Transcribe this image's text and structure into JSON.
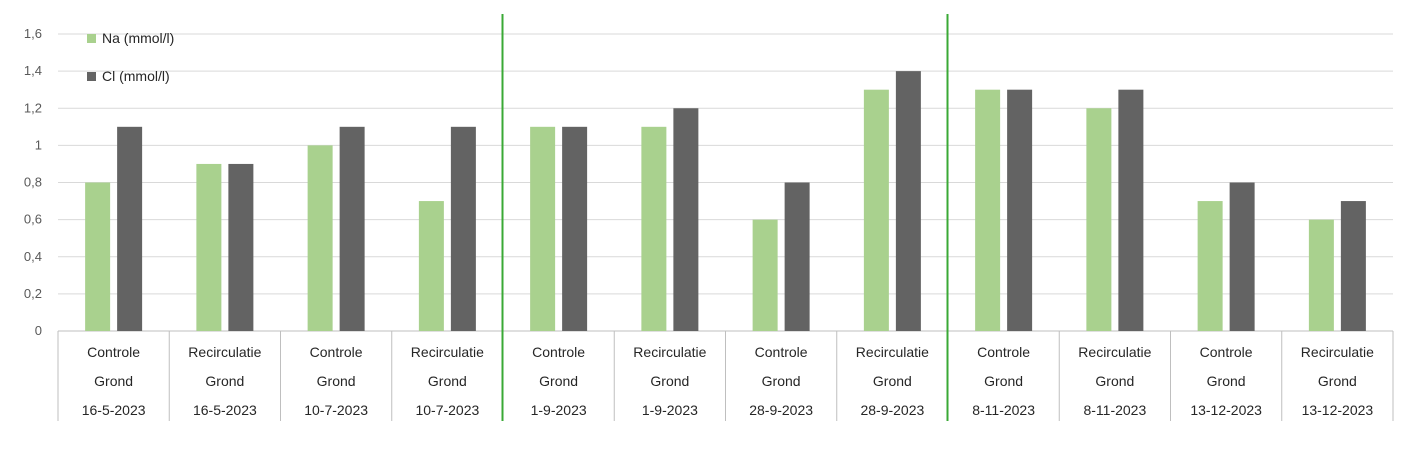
{
  "chart_data": {
    "type": "bar",
    "categories": [
      [
        "Controle",
        "Grond",
        "16-5-2023"
      ],
      [
        "Recirculatie",
        "Grond",
        "16-5-2023"
      ],
      [
        "Controle",
        "Grond",
        "10-7-2023"
      ],
      [
        "Recirculatie",
        "Grond",
        "10-7-2023"
      ],
      [
        "Controle",
        "Grond",
        "1-9-2023"
      ],
      [
        "Recirculatie",
        "Grond",
        "1-9-2023"
      ],
      [
        "Controle",
        "Grond",
        "28-9-2023"
      ],
      [
        "Recirculatie",
        "Grond",
        "28-9-2023"
      ],
      [
        "Controle",
        "Grond",
        "8-11-2023"
      ],
      [
        "Recirculatie",
        "Grond",
        "8-11-2023"
      ],
      [
        "Controle",
        "Grond",
        "13-12-2023"
      ],
      [
        "Recirculatie",
        "Grond",
        "13-12-2023"
      ]
    ],
    "series": [
      {
        "name": "Na (mmol/l)",
        "color": "#a9d18e",
        "values": [
          0.8,
          0.9,
          1.0,
          0.7,
          1.1,
          1.1,
          0.6,
          1.3,
          1.3,
          1.2,
          0.7,
          0.6
        ]
      },
      {
        "name": "Cl (mmol/l)",
        "color": "#636363",
        "values": [
          1.1,
          0.9,
          1.1,
          1.1,
          1.1,
          1.2,
          0.8,
          1.4,
          1.3,
          1.3,
          0.8,
          0.7
        ]
      }
    ],
    "ylim": [
      0,
      1.6
    ],
    "yticks": [
      "0",
      "0,2",
      "0,4",
      "0,6",
      "0,8",
      "1",
      "1,2",
      "1,4",
      "1,6"
    ],
    "grid": true,
    "legend_position": "top-left",
    "separator_color": "#3aa935"
  }
}
